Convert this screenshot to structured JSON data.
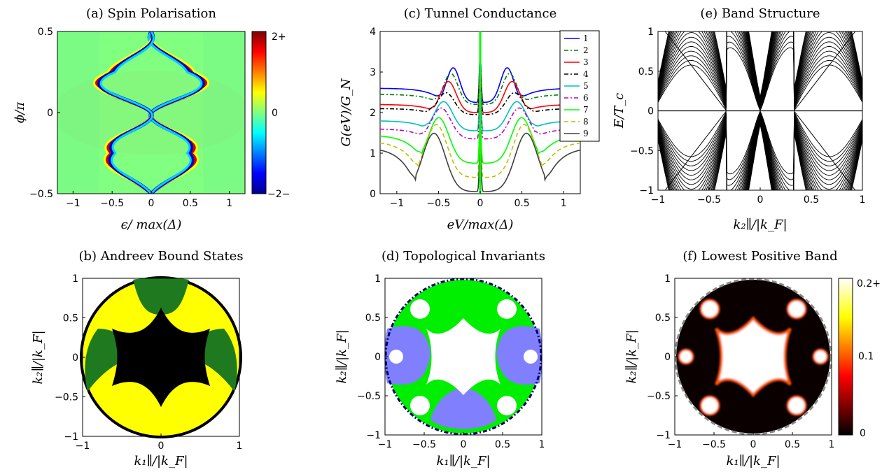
{
  "chart_data": [
    {
      "panel": "a",
      "type": "heatmap",
      "title": "(a) Spin Polarisation",
      "xlabel": "ϵ/ max(Δ)",
      "ylabel": "ϕ/π",
      "xlim": [
        -1.2,
        1.2
      ],
      "ylim": [
        -0.5,
        0.5
      ],
      "xticks": [
        "−1",
        "−0.5",
        "0",
        "0.5",
        "1"
      ],
      "yticks": [
        "−0.5",
        "0",
        "0.5"
      ],
      "colorbar": {
        "ticks": [
          "2+",
          "0",
          "−2−"
        ],
        "range": [
          -2,
          2
        ],
        "colormap": "jet"
      }
    },
    {
      "panel": "b",
      "type": "heatmap",
      "title": "(b) Andreev Bound States",
      "xlabel": "k₁∥/|k_F|",
      "ylabel": "k₂∥/|k_F|",
      "xlim": [
        -1,
        1
      ],
      "ylim": [
        -1,
        1
      ],
      "xticks": [
        "−1",
        "0",
        "1"
      ],
      "yticks": [
        "−1",
        "−0.5",
        "0",
        "0.5",
        "1"
      ],
      "colors": {
        "green": "#1f7a1f",
        "yellow": "#ffff00",
        "black": "#000000"
      }
    },
    {
      "panel": "c",
      "type": "line",
      "title": "(c) Tunnel Conductance",
      "xlabel": "eV/max(Δ)",
      "ylabel": "G(eV)/G_N",
      "xlim": [
        -1.2,
        1.2
      ],
      "ylim": [
        0,
        4
      ],
      "xticks": [
        "−1",
        "−0.5",
        "0",
        "0.5",
        "1"
      ],
      "yticks": [
        "0",
        "1",
        "2",
        "3",
        "4"
      ],
      "legend_position": "top-right",
      "series": [
        {
          "name": "1",
          "color": "#0000ff",
          "dash": "",
          "plateau": 2.6,
          "dip": 2.25,
          "bump": 3.2
        },
        {
          "name": "2",
          "color": "#007f00",
          "dash": "6,3,2,3",
          "plateau": 2.45,
          "dip": 2.2,
          "bump": 3.05
        },
        {
          "name": "3",
          "color": "#ff0000",
          "dash": "",
          "plateau": 2.2,
          "dip": 2.0,
          "bump": 2.85
        },
        {
          "name": "4",
          "color": "#000000",
          "dash": "6,3,2,3",
          "plateau": 2.1,
          "dip": 1.95,
          "bump": 2.55
        },
        {
          "name": "5",
          "color": "#00bfbf",
          "dash": "",
          "plateau": 1.8,
          "dip": 1.55,
          "bump": 2.35
        },
        {
          "name": "6",
          "color": "#bf00bf",
          "dash": "6,3,2,3",
          "plateau": 1.6,
          "dip": 1.35,
          "bump": 2.2
        },
        {
          "name": "7",
          "color": "#00ff00",
          "dash": "",
          "plateau": 1.45,
          "dip": 0.75,
          "bump": 2.0
        },
        {
          "name": "8",
          "color": "#bfbf00",
          "dash": "6,4",
          "plateau": 1.3,
          "dip": 0.4,
          "bump": 1.85
        },
        {
          "name": "9",
          "color": "#404040",
          "dash": "",
          "plateau": 1.15,
          "dip": 0.05,
          "bump": 1.65
        }
      ]
    },
    {
      "panel": "d",
      "type": "heatmap",
      "title": "(d) Topological Invariants",
      "xlabel": "k₁∥/|k_F|",
      "ylabel": "k₂∥/|k_F|",
      "xlim": [
        -1,
        1
      ],
      "ylim": [
        -1,
        1
      ],
      "xticks": [
        "−1",
        "−0.5",
        "0",
        "0.5",
        "1"
      ],
      "yticks": [
        "−1",
        "−0.5",
        "0",
        "0.5",
        "1"
      ],
      "colors": {
        "green": "#00ee00",
        "blue": "#8080ff",
        "white": "#ffffff",
        "boundary": "#000066"
      }
    },
    {
      "panel": "e",
      "type": "line",
      "title": "(e) Band Structure",
      "xlabel": "k₂∥/|k_F|",
      "ylabel": "E/T_c",
      "xlim": [
        -1,
        1
      ],
      "ylim": [
        -1,
        1
      ],
      "xticks": [
        "−1",
        "−0.5",
        "0",
        "0.5",
        "1"
      ],
      "yticks": [
        "−1",
        "−0.5",
        "0",
        "0.5",
        "1"
      ],
      "band_crossings": [
        -0.33,
        0.33
      ],
      "band_count": 20
    },
    {
      "panel": "f",
      "type": "heatmap",
      "title": "(f) Lowest Positive Band",
      "xlabel": "k₁∥/|k_F|",
      "ylabel": "k₂∥/|k_F|",
      "xlim": [
        -1,
        1
      ],
      "ylim": [
        -1,
        1
      ],
      "xticks": [
        "−1",
        "−0.5",
        "0",
        "0.5",
        "1"
      ],
      "yticks": [
        "−1",
        "−0.5",
        "0",
        "0.5",
        "1"
      ],
      "colorbar": {
        "ticks": [
          "0.2+",
          "0.1",
          "0"
        ],
        "range": [
          0,
          0.2
        ],
        "colormap": "hot"
      }
    }
  ]
}
